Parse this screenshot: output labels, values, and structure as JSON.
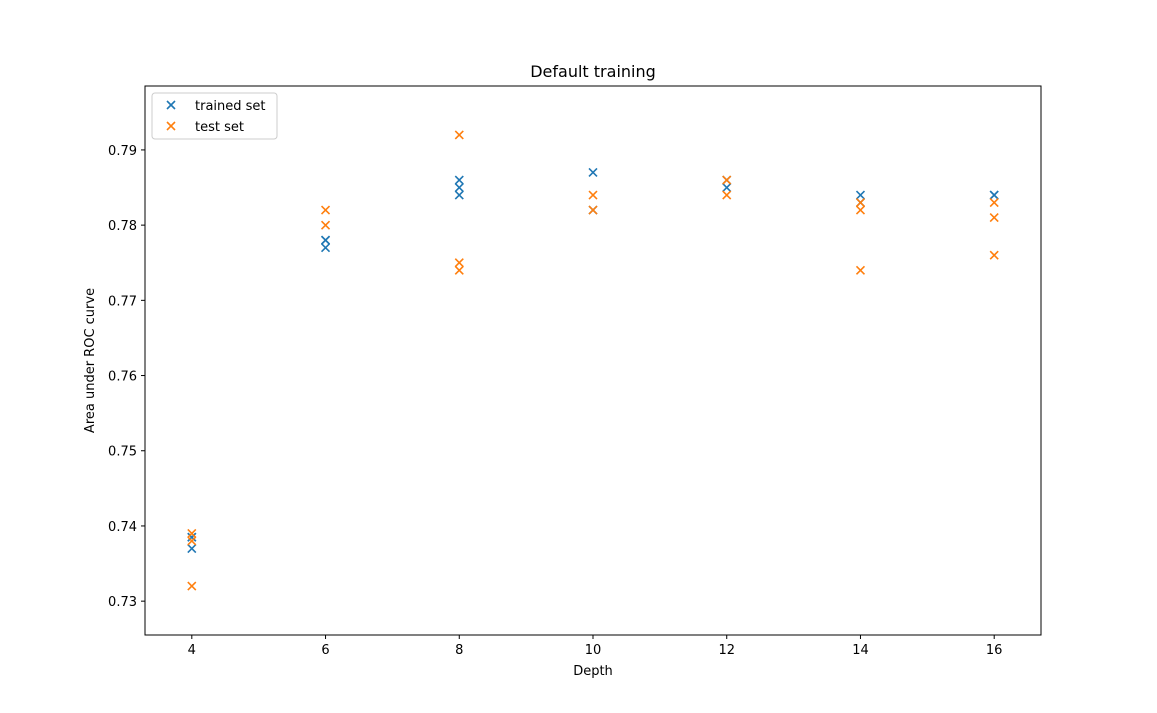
{
  "chart_data": {
    "type": "scatter",
    "title": "Default training",
    "xlabel": "Depth",
    "ylabel": "Area under ROC curve",
    "xlim": [
      3.3,
      16.7
    ],
    "ylim": [
      0.7255,
      0.7985
    ],
    "xticks": [
      4,
      6,
      8,
      10,
      12,
      14,
      16
    ],
    "yticks": [
      0.73,
      0.74,
      0.75,
      0.76,
      0.77,
      0.78,
      0.79
    ],
    "grid": false,
    "legend_position": "top-left",
    "marker": "x",
    "series": [
      {
        "name": "trained set",
        "color": "#1f77b4",
        "x": [
          4,
          4,
          4,
          6,
          6,
          6,
          8,
          8,
          8,
          10,
          10,
          12,
          12,
          14,
          14,
          16,
          16
        ],
        "y": [
          0.737,
          0.7385,
          0.7385,
          0.777,
          0.778,
          0.778,
          0.786,
          0.785,
          0.784,
          0.787,
          0.782,
          0.785,
          0.786,
          0.784,
          0.783,
          0.784,
          0.784
        ]
      },
      {
        "name": "test set",
        "color": "#ff7f0e",
        "x": [
          4,
          4,
          4,
          6,
          6,
          8,
          8,
          8,
          10,
          10,
          12,
          12,
          14,
          14,
          14,
          16,
          16,
          16
        ],
        "y": [
          0.739,
          0.738,
          0.732,
          0.782,
          0.78,
          0.792,
          0.775,
          0.774,
          0.784,
          0.782,
          0.786,
          0.784,
          0.783,
          0.782,
          0.774,
          0.783,
          0.781,
          0.776
        ]
      }
    ]
  }
}
